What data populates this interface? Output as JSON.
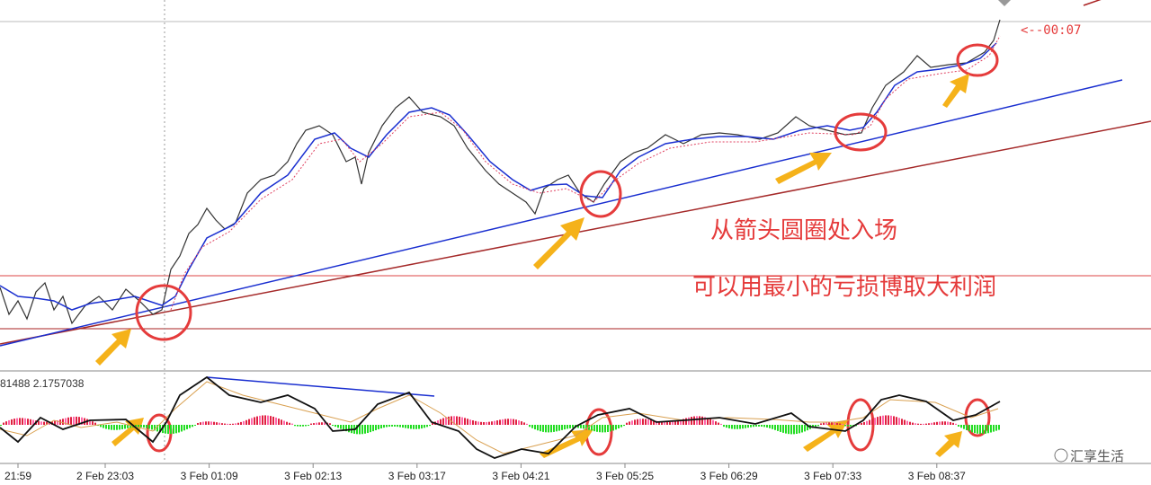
{
  "timer": "<--00:07",
  "annotations": [
    "从箭头圆圈处入场",
    "可以用最小的亏损博取大利润"
  ],
  "indicator": {
    "label": "81488 2.1757038"
  },
  "x_axis": {
    "labels": [
      "21:59",
      "2 Feb 23:03",
      "3 Feb 01:09",
      "3 Feb 02:13",
      "3 Feb 03:17",
      "3 Feb 04:21",
      "3 Feb 05:25",
      "3 Feb 06:29",
      "3 Feb 07:33",
      "3 Feb 08:37"
    ]
  },
  "watermark": "汇享生活"
}
